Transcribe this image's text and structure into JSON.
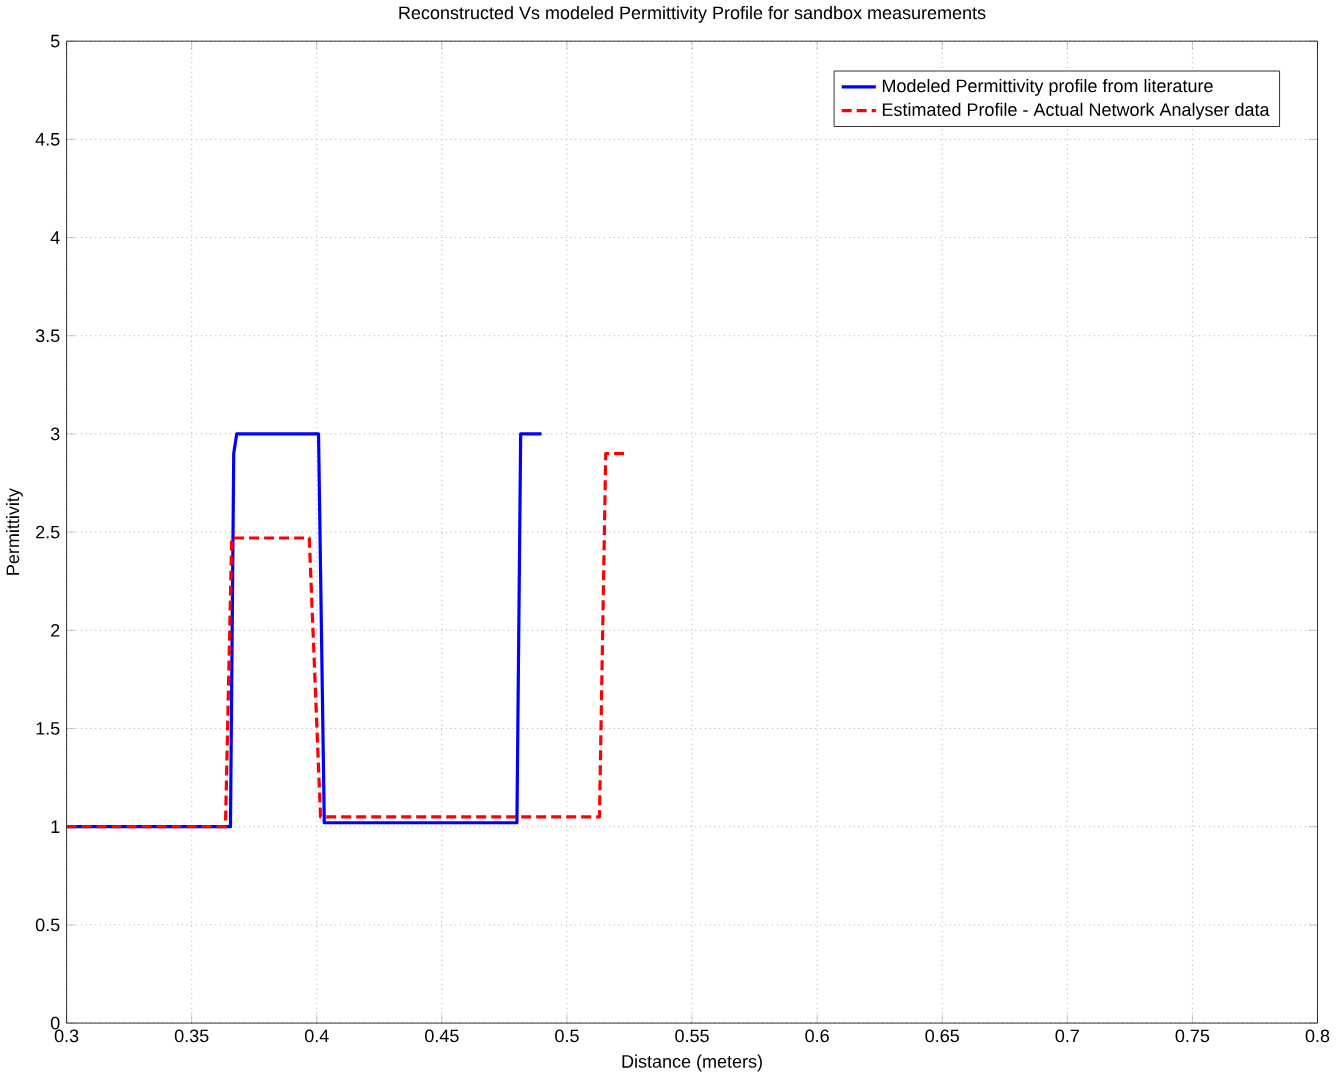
{
  "chart_data": {
    "type": "line",
    "title": "Reconstructed Vs modeled Permittivity Profile for sandbox measurements",
    "xlabel": "Distance (meters)",
    "ylabel": "Permittivity",
    "xlim": [
      0.3,
      0.8
    ],
    "ylim": [
      0,
      5
    ],
    "xticks": [
      0.3,
      0.35,
      0.4,
      0.45,
      0.5,
      0.55,
      0.6,
      0.65,
      0.7,
      0.75,
      0.8
    ],
    "yticks": [
      0,
      0.5,
      1,
      1.5,
      2,
      2.5,
      3,
      3.5,
      4,
      4.5,
      5
    ],
    "grid": true,
    "legend": "top right",
    "series": [
      {
        "name": "Modeled Permittivity profile from literature",
        "color": "#0000ff",
        "line_style": "solid",
        "x": [
          0.3,
          0.3655,
          0.3668,
          0.368,
          0.4007,
          0.403,
          0.48,
          0.4815,
          0.4898
        ],
        "values": [
          1.0,
          1.0,
          2.9,
          3.0,
          3.0,
          1.02,
          1.02,
          3.0,
          3.0
        ]
      },
      {
        "name": "Estimated Profile - Actual Network Analyser data",
        "color": "#ff0000",
        "line_style": "dashed",
        "x": [
          0.3,
          0.3635,
          0.366,
          0.397,
          0.4015,
          0.513,
          0.5155,
          0.5245
        ],
        "values": [
          1.0,
          1.0,
          2.47,
          2.47,
          1.05,
          1.05,
          2.9,
          2.9
        ]
      }
    ]
  }
}
